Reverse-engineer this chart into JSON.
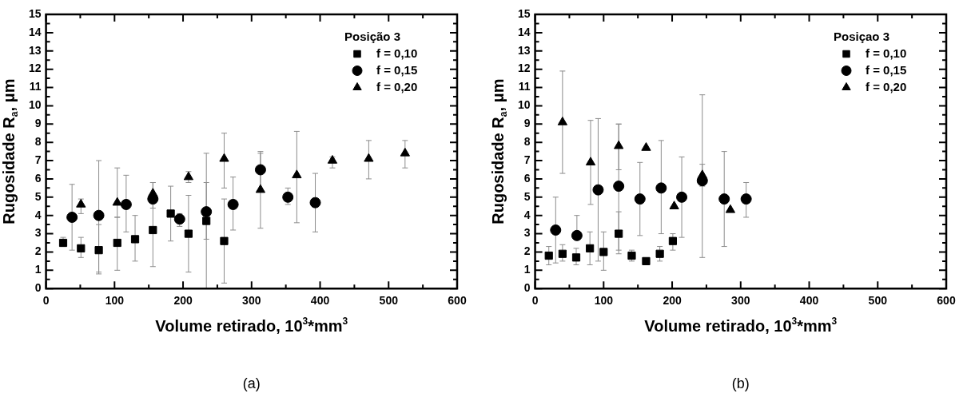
{
  "chart_data": [
    {
      "type": "scatter",
      "xlabel": "Volume retirado, 10$^{3}$*mm$^{3}$",
      "ylabel": "Rugosidade R$_{a}$, μm",
      "legend_title": "Posição 3",
      "legend": "top right",
      "grid": false,
      "annotations": [
        "(a)"
      ],
      "xlim": [
        0,
        600
      ],
      "ylim": [
        0,
        15
      ],
      "xticks": [
        0,
        {
          "value": 50,
          "label": null
        },
        100,
        {
          "value": 150,
          "label": null
        },
        200,
        {
          "value": 250,
          "label": null
        },
        300,
        {
          "value": 350,
          "label": null
        },
        400,
        {
          "value": 450,
          "label": null
        },
        500,
        {
          "value": 550,
          "label": null
        },
        600
      ],
      "yticks": [
        0,
        {
          "value": 0.5,
          "label": null
        },
        1,
        {
          "value": 1.5,
          "label": null
        },
        2,
        {
          "value": 2.5,
          "label": null
        },
        3,
        {
          "value": 3.5,
          "label": null
        },
        4,
        {
          "value": 4.5,
          "label": null
        },
        5,
        {
          "value": 5.5,
          "label": null
        },
        6,
        {
          "value": 6.5,
          "label": null
        },
        7,
        {
          "value": 7.5,
          "label": null
        },
        8,
        {
          "value": 8.5,
          "label": null
        },
        9,
        {
          "value": 9.5,
          "label": null
        },
        10,
        {
          "value": 10.5,
          "label": null
        },
        11,
        {
          "value": 11.5,
          "label": null
        },
        12,
        {
          "value": 12.5,
          "label": null
        },
        13,
        {
          "value": 13.5,
          "label": null
        },
        14,
        {
          "value": 14.5,
          "label": null
        },
        15
      ],
      "series": [
        {
          "name": "f = 0,10",
          "color": "#000000",
          "marker": "square",
          "x": [
            25,
            51,
            77,
            104,
            130,
            156,
            182,
            208,
            234,
            260
          ],
          "values": [
            2.5,
            2.2,
            2.1,
            2.5,
            2.7,
            3.2,
            4.1,
            3.0,
            3.7,
            2.6
          ],
          "errors": [
            [
              2.3,
              2.8
            ],
            [
              1.7,
              2.8
            ],
            [
              0.8,
              3.5
            ],
            [
              1.0,
              3.9
            ],
            [
              1.5,
              4.0
            ],
            [
              1.2,
              5.8
            ],
            [
              2.6,
              5.6
            ],
            [
              0.9,
              5.1
            ],
            [
              0,
              7.4
            ],
            [
              0.3,
              4.9
            ]
          ]
        },
        {
          "name": "f = 0,15",
          "color": "#000000",
          "marker": "circle",
          "x": [
            38,
            77,
            117,
            156,
            195,
            234,
            273,
            313,
            353,
            393
          ],
          "values": [
            3.9,
            4.0,
            4.6,
            4.9,
            3.8,
            4.2,
            4.6,
            6.5,
            5.0,
            4.7
          ],
          "errors": [
            [
              2.1,
              5.7
            ],
            [
              0.9,
              7.0
            ],
            [
              3.1,
              6.2
            ],
            [
              4.4,
              5.8
            ],
            [
              3.4,
              4.1
            ],
            [
              2.7,
              5.8
            ],
            [
              3.2,
              6.1
            ],
            [
              5.4,
              7.4
            ],
            [
              4.6,
              5.5
            ],
            [
              3.1,
              6.3
            ]
          ]
        },
        {
          "name": "f = 0,20",
          "color": "#000000",
          "marker": "triangle",
          "x": [
            51,
            104,
            156,
            208,
            260,
            313,
            366,
            418,
            471,
            524
          ],
          "values": [
            4.6,
            4.7,
            5.2,
            6.1,
            7.1,
            5.4,
            6.2,
            7.0,
            7.1,
            7.4
          ],
          "errors": [
            [
              4.1,
              4.9
            ],
            [
              3.9,
              6.6
            ],
            null,
            [
              5.8,
              6.4
            ],
            [
              5.5,
              8.5
            ],
            [
              3.3,
              7.5
            ],
            [
              3.6,
              8.6
            ],
            [
              6.6,
              7.2
            ],
            [
              6.0,
              8.1
            ],
            [
              6.6,
              8.1
            ]
          ]
        }
      ]
    },
    {
      "type": "scatter",
      "xlabel": "Volume retirado, 10$^{3}$*mm$^{3}$",
      "ylabel": "Rugosidade R$_{a}$, μm",
      "legend_title": "Posiçao 3",
      "legend": "top right",
      "grid": false,
      "annotations": [
        "(b)"
      ],
      "xlim": [
        0,
        600
      ],
      "ylim": [
        0,
        15
      ],
      "xticks": [
        0,
        {
          "value": 50,
          "label": null
        },
        100,
        {
          "value": 150,
          "label": null
        },
        200,
        {
          "value": 250,
          "label": null
        },
        300,
        {
          "value": 350,
          "label": null
        },
        400,
        {
          "value": 450,
          "label": null
        },
        500,
        {
          "value": 550,
          "label": null
        },
        600
      ],
      "yticks": [
        0,
        {
          "value": 0.5,
          "label": null
        },
        1,
        {
          "value": 1.5,
          "label": null
        },
        2,
        {
          "value": 2.5,
          "label": null
        },
        3,
        {
          "value": 3.5,
          "label": null
        },
        4,
        {
          "value": 4.5,
          "label": null
        },
        5,
        {
          "value": 5.5,
          "label": null
        },
        6,
        {
          "value": 6.5,
          "label": null
        },
        7,
        {
          "value": 7.5,
          "label": null
        },
        8,
        {
          "value": 8.5,
          "label": null
        },
        9,
        {
          "value": 9.5,
          "label": null
        },
        10,
        {
          "value": 10.5,
          "label": null
        },
        11,
        {
          "value": 11.5,
          "label": null
        },
        12,
        {
          "value": 12.5,
          "label": null
        },
        13,
        {
          "value": 13.5,
          "label": null
        },
        14,
        {
          "value": 14.5,
          "label": null
        },
        15
      ],
      "series": [
        {
          "name": "f = 0,10",
          "color": "#000000",
          "marker": "square",
          "x": [
            20,
            40,
            60,
            80,
            100,
            122,
            141,
            162,
            182,
            201
          ],
          "values": [
            1.8,
            1.9,
            1.7,
            2.2,
            2.0,
            3.0,
            1.8,
            1.5,
            1.9,
            2.6
          ],
          "errors": [
            [
              1.3,
              2.3
            ],
            [
              1.5,
              2.4
            ],
            [
              1.3,
              2.2
            ],
            [
              1.3,
              3.1
            ],
            [
              1.0,
              3.1
            ],
            [
              1.9,
              4.2
            ],
            [
              1.5,
              2.1
            ],
            null,
            [
              1.5,
              2.3
            ],
            [
              2.1,
              3.0
            ]
          ]
        },
        {
          "name": "f = 0,15",
          "color": "#000000",
          "marker": "circle",
          "x": [
            30,
            61,
            92,
            122,
            153,
            184,
            214,
            244,
            276,
            308
          ],
          "values": [
            3.2,
            2.9,
            5.4,
            5.6,
            4.9,
            5.5,
            5.0,
            5.9,
            4.9,
            4.9
          ],
          "errors": [
            [
              1.4,
              5.0
            ],
            [
              2.9,
              4.0
            ],
            [
              1.5,
              9.3
            ],
            [
              2.1,
              9.0
            ],
            [
              2.9,
              6.9
            ],
            [
              3.0,
              8.1
            ],
            [
              2.8,
              7.2
            ],
            [
              1.7,
              10.6
            ],
            [
              2.3,
              7.5
            ],
            [
              3.9,
              5.8
            ]
          ]
        },
        {
          "name": "f = 0,20",
          "color": "#000000",
          "marker": "triangle",
          "x": [
            40,
            81,
            122,
            162,
            203,
            244,
            285
          ],
          "values": [
            9.1,
            6.9,
            7.8,
            7.7,
            4.5,
            6.2,
            4.3
          ],
          "errors": [
            [
              6.3,
              11.9
            ],
            [
              4.6,
              9.2
            ],
            [
              6.5,
              9.0
            ],
            null,
            null,
            [
              5.6,
              6.8
            ],
            null
          ]
        }
      ]
    }
  ]
}
